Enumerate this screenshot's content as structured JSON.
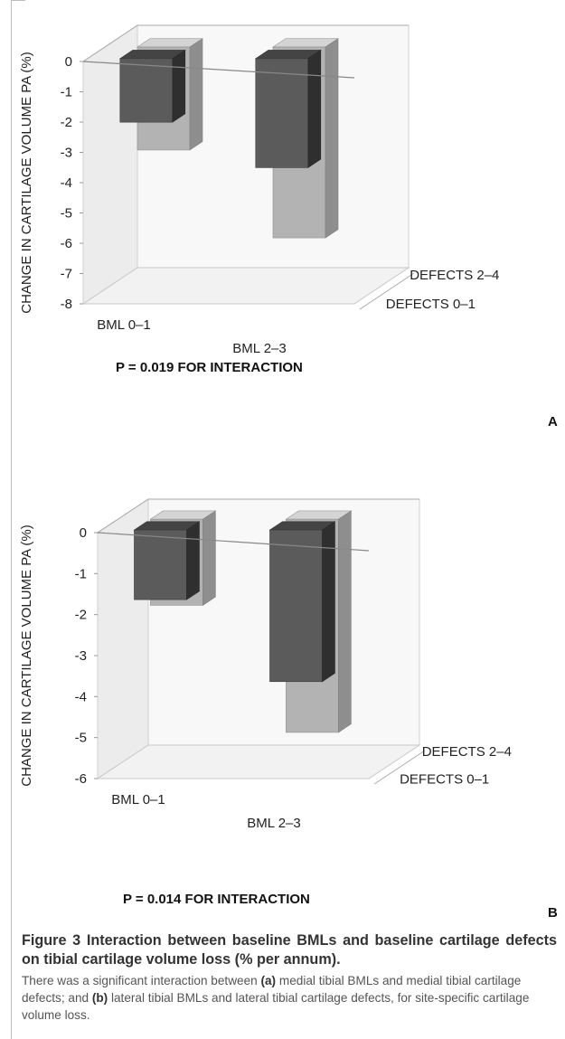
{
  "chart_data": [
    {
      "type": "bar",
      "projection": "3d",
      "panel_label": "A",
      "note": "P = 0.019 FOR INTERACTION",
      "ylabel": "CHANGE IN CARTILAGE VOLUME PA (%)",
      "ylim": [
        -8,
        0
      ],
      "yticks": [
        0,
        -1,
        -2,
        -3,
        -4,
        -5,
        -6,
        -7,
        -8
      ],
      "categories": [
        "BML 0–1",
        "BML 2–3"
      ],
      "series": [
        {
          "name": "DEFECTS 0–1",
          "values": [
            -2.1,
            -3.6
          ],
          "color": "#5b5b5b"
        },
        {
          "name": "DEFECTS 2–4",
          "values": [
            -3.4,
            -6.3
          ],
          "color": "#b3b3b3"
        }
      ],
      "series_axis_labels": [
        "DEFECTS 0–1",
        "DEFECTS 2–4"
      ]
    },
    {
      "type": "bar",
      "projection": "3d",
      "panel_label": "B",
      "note": "P = 0.014 FOR INTERACTION",
      "ylabel": "CHANGE IN CARTILAGE VOLUME PA (%)",
      "ylim": [
        -6,
        0
      ],
      "yticks": [
        0,
        -1,
        -2,
        -3,
        -4,
        -5,
        -6
      ],
      "categories": [
        "BML 0–1",
        "BML 2–3"
      ],
      "series": [
        {
          "name": "DEFECTS 0–1",
          "values": [
            -1.7,
            -3.7
          ],
          "color": "#5b5b5b"
        },
        {
          "name": "DEFECTS 2–4",
          "values": [
            -2.1,
            -5.2
          ],
          "color": "#b3b3b3"
        }
      ],
      "series_axis_labels": [
        "DEFECTS 0–1",
        "DEFECTS 2–4"
      ]
    }
  ],
  "caption": {
    "title_prefix": "Figure 3",
    "title": "Interaction between baseline BMLs and baseline cartilage defects on tibial cartilage volume loss (% per annum)",
    "title_end": ".",
    "body_1": "There was a significant interaction between ",
    "marker_a": "(a)",
    "body_2": " medial tibial BMLs and medial tibial cartilage defects; and ",
    "marker_b": "(b)",
    "body_3": " lateral tibial BMLs and lateral tibial cartilage defects, for site-specific cartilage volume loss."
  }
}
